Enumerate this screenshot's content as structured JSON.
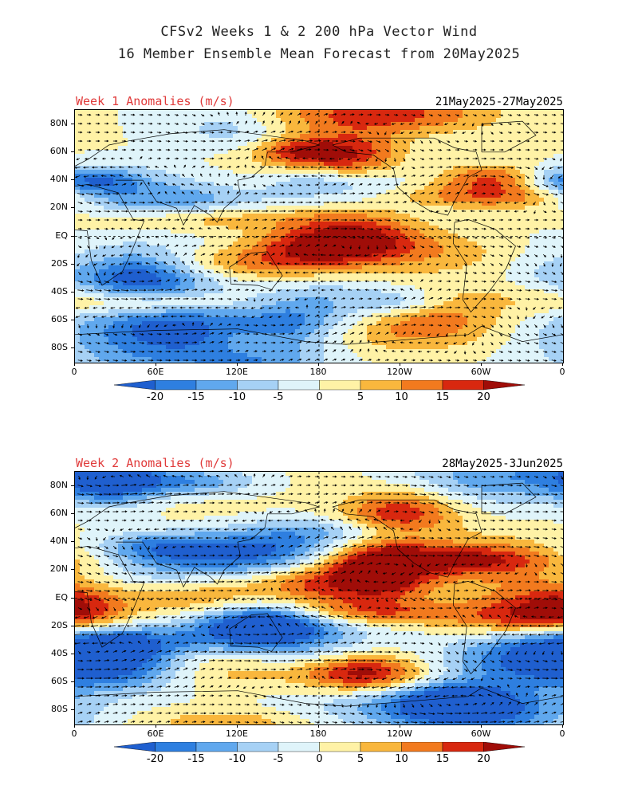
{
  "header": {
    "title_line1": "CFSv2 Weeks 1 & 2 200 hPa Vector Wind",
    "title_line2": "16 Member Ensemble Mean Forecast from 20May2025"
  },
  "panels": [
    {
      "title": "Week 1 Anomalies (m/s)",
      "dates": "21May2025-27May2025",
      "seed": 11
    },
    {
      "title": "Week 2 Anomalies (m/s)",
      "dates": "28May2025-3Jun2025",
      "seed": 29
    }
  ],
  "axes": {
    "lat_labels": [
      "80N",
      "60N",
      "40N",
      "20N",
      "EQ",
      "20S",
      "40S",
      "60S",
      "80S"
    ],
    "lat_values": [
      80,
      60,
      40,
      20,
      0,
      -20,
      -40,
      -60,
      -80
    ],
    "lon_labels": [
      "0",
      "60E",
      "120E",
      "180",
      "120W",
      "60W",
      "0"
    ],
    "lon_values": [
      0,
      60,
      120,
      180,
      240,
      300,
      360
    ]
  },
  "colorbar": {
    "levels": [
      "-20",
      "-15",
      "-10",
      "-5",
      "0",
      "5",
      "10",
      "15",
      "20"
    ],
    "colors": [
      "#1f5fcf",
      "#2e7fe0",
      "#60a8ee",
      "#a6d1f5",
      "#dff4fa",
      "#fff2a6",
      "#f9b73d",
      "#f27a1e",
      "#d8280f",
      "#a00d08"
    ]
  }
}
